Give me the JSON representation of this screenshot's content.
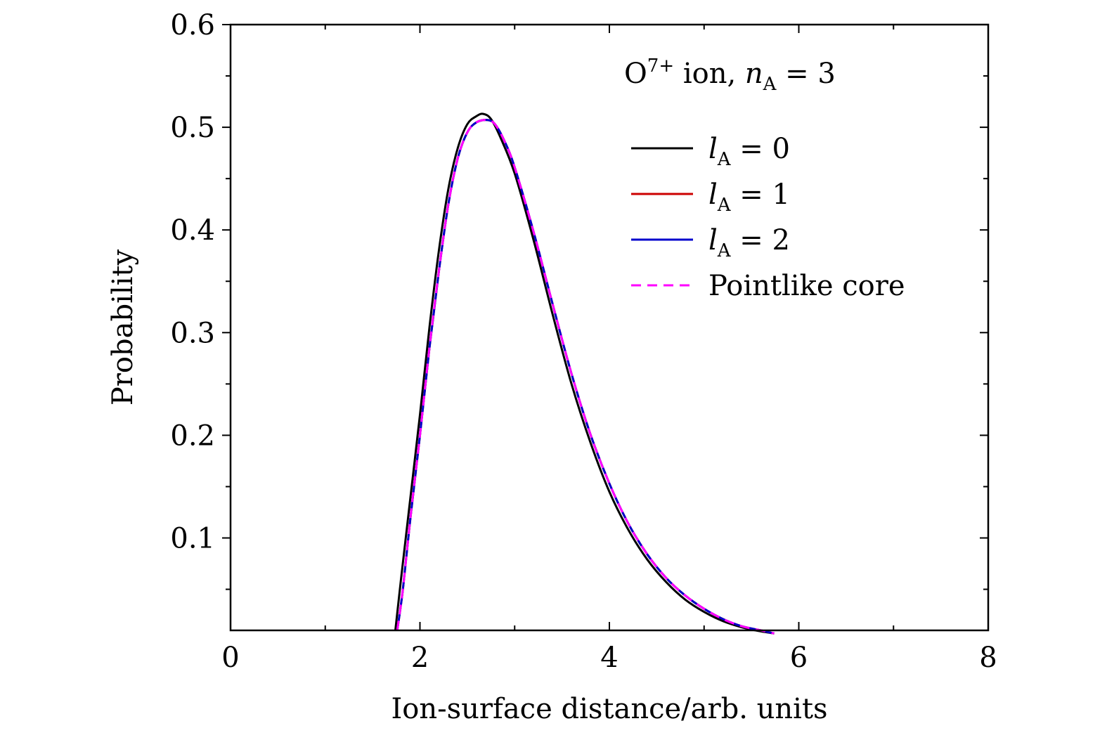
{
  "chart_data": {
    "type": "line",
    "xlabel": "Ion-surface distance/arb. units",
    "ylabel": "Probability",
    "xlim": [
      0,
      8
    ],
    "ylim": [
      0.01,
      0.6
    ],
    "x_ticks": [
      "0",
      "2",
      "4",
      "6",
      "8"
    ],
    "y_ticks": [
      "0.1",
      "0.2",
      "0.3",
      "0.4",
      "0.5",
      "0.6"
    ],
    "annotation": {
      "prefix": "O",
      "superscript": "7+",
      "middle": " ion, ",
      "var": "n",
      "subscript": "A",
      "suffix": " = 3"
    },
    "series": [
      {
        "name": "l_A = 0",
        "label_var": "l",
        "label_sub": "A",
        "label_suffix": " = 0",
        "color": "#000000",
        "dash": "solid",
        "x": [
          1.74,
          1.8,
          1.9,
          2.0,
          2.1,
          2.2,
          2.3,
          2.4,
          2.5,
          2.6,
          2.67,
          2.75,
          2.85,
          3.0,
          3.2,
          3.4,
          3.6,
          3.8,
          4.0,
          4.2,
          4.4,
          4.6,
          4.8,
          5.0,
          5.2,
          5.4,
          5.6,
          5.74
        ],
        "y": [
          0.01,
          0.06,
          0.14,
          0.22,
          0.305,
          0.38,
          0.44,
          0.48,
          0.503,
          0.511,
          0.513,
          0.508,
          0.49,
          0.455,
          0.39,
          0.318,
          0.25,
          0.193,
          0.145,
          0.108,
          0.079,
          0.057,
          0.04,
          0.028,
          0.019,
          0.013,
          0.009,
          0.007
        ]
      },
      {
        "name": "l_A = 1",
        "label_var": "l",
        "label_sub": "A",
        "label_suffix": " = 1",
        "color": "#cc0000",
        "dash": "solid",
        "x": [
          1.76,
          1.82,
          1.9,
          2.0,
          2.1,
          2.2,
          2.3,
          2.4,
          2.5,
          2.6,
          2.72,
          2.8,
          2.9,
          3.0,
          3.2,
          3.4,
          3.6,
          3.8,
          4.0,
          4.2,
          4.4,
          4.6,
          4.8,
          5.0,
          5.2,
          5.4,
          5.6,
          5.74
        ],
        "y": [
          0.01,
          0.05,
          0.12,
          0.2,
          0.285,
          0.36,
          0.425,
          0.47,
          0.495,
          0.505,
          0.507,
          0.502,
          0.485,
          0.461,
          0.398,
          0.328,
          0.26,
          0.201,
          0.153,
          0.114,
          0.084,
          0.061,
          0.044,
          0.031,
          0.021,
          0.014,
          0.01,
          0.007
        ]
      },
      {
        "name": "l_A = 2",
        "label_var": "l",
        "label_sub": "A",
        "label_suffix": " = 2",
        "color": "#0000cc",
        "dash": "solid",
        "x": [
          1.76,
          1.82,
          1.9,
          2.0,
          2.1,
          2.2,
          2.3,
          2.4,
          2.5,
          2.6,
          2.72,
          2.8,
          2.9,
          3.0,
          3.2,
          3.4,
          3.6,
          3.8,
          4.0,
          4.2,
          4.4,
          4.6,
          4.8,
          5.0,
          5.2,
          5.4,
          5.6,
          5.74
        ],
        "y": [
          0.01,
          0.05,
          0.12,
          0.2,
          0.285,
          0.36,
          0.425,
          0.47,
          0.495,
          0.505,
          0.507,
          0.502,
          0.485,
          0.461,
          0.398,
          0.328,
          0.26,
          0.201,
          0.153,
          0.114,
          0.084,
          0.061,
          0.044,
          0.031,
          0.021,
          0.014,
          0.01,
          0.007
        ]
      },
      {
        "name": "Pointlike core",
        "label_var": "",
        "label_sub": "",
        "label_suffix": "Pointlike core",
        "color": "#ff00ff",
        "dash": "dashed",
        "x": [
          1.76,
          1.82,
          1.9,
          2.0,
          2.1,
          2.2,
          2.3,
          2.4,
          2.5,
          2.6,
          2.72,
          2.8,
          2.9,
          3.0,
          3.2,
          3.4,
          3.6,
          3.8,
          4.0,
          4.2,
          4.4,
          4.6,
          4.8,
          5.0,
          5.2,
          5.4,
          5.6,
          5.74
        ],
        "y": [
          0.01,
          0.05,
          0.12,
          0.2,
          0.285,
          0.36,
          0.425,
          0.47,
          0.495,
          0.505,
          0.507,
          0.502,
          0.485,
          0.461,
          0.398,
          0.328,
          0.26,
          0.201,
          0.153,
          0.114,
          0.084,
          0.061,
          0.044,
          0.031,
          0.021,
          0.014,
          0.01,
          0.007
        ]
      }
    ],
    "legend_position": "top-right"
  }
}
